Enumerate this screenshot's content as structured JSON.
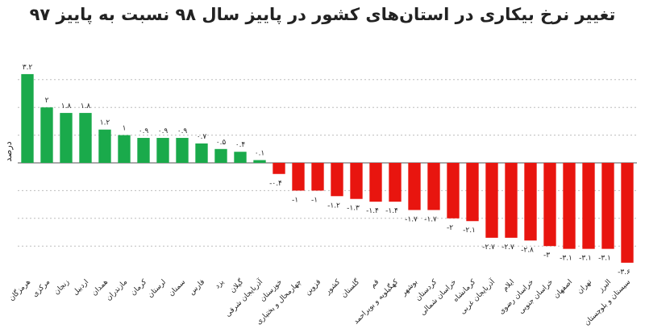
{
  "chart_data": {
    "type": "bar",
    "title": "تغییر نرخ بیکاری در استان‌های کشور در پاییز سال ۹۸ نسبت به پاییز ۹۷",
    "ylabel": "درصد",
    "xlabel": "",
    "ylim": [
      -3.8,
      3.4
    ],
    "grid": true,
    "positive_color": "#1aaa4b",
    "negative_color": "#e8150f",
    "categories": [
      "هرمزگان",
      "مرکزی",
      "زنجان",
      "اردبیل",
      "همدان",
      "مازندران",
      "کرمان",
      "لرستان",
      "سمنان",
      "فارس",
      "یزد",
      "گیلان",
      "آذربایجان شرقی",
      "خوزستان",
      "چهارمحال و بختیاری",
      "قزوین",
      "کشور",
      "گلستان",
      "قم",
      "کهگیلویه و بویراحمد",
      "بوشهر",
      "کردستان",
      "خراسان شمالی",
      "کرمانشاه",
      "آذربایجان غربی",
      "ایلام",
      "خراسان رضوی",
      "خراسان جنوبی",
      "اصفهان",
      "تهران",
      "البرز",
      "سیستان و بلوچستان"
    ],
    "values": [
      3.2,
      2,
      1.8,
      1.8,
      1.2,
      1,
      0.9,
      0.9,
      0.9,
      0.7,
      0.5,
      0.4,
      0.1,
      -0.4,
      -1,
      -1,
      -1.2,
      -1.3,
      -1.4,
      -1.4,
      -1.7,
      -1.7,
      -2,
      -2.1,
      -2.7,
      -2.7,
      -2.8,
      -3,
      -3.1,
      -3.1,
      -3.1,
      -3.6
    ],
    "value_labels": [
      "۳.۲",
      "۲",
      "۱.۸",
      "۱.۸",
      "۱.۲",
      "۱",
      "۰.۹",
      "۰.۹",
      "۰.۹",
      "۰.۷",
      "۰.۵",
      "۰.۴",
      "۰.۱",
      "-۰.۴",
      "-۱",
      "-۱",
      "-۱.۲",
      "-۱.۳",
      "-۱.۴",
      "-۱.۴",
      "-۱.۷",
      "-۱.۷",
      "-۲",
      "-۲.۱",
      "-۲.۷",
      "-۲.۷",
      "-۲.۸",
      "-۳",
      "-۳.۱",
      "-۳.۱",
      "-۳.۱",
      "-۳.۶"
    ]
  }
}
